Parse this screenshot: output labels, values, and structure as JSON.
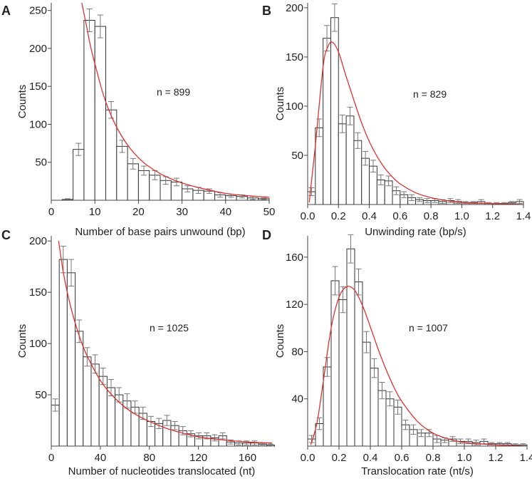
{
  "figure_title": "",
  "chart_data": [
    {
      "type": "bar",
      "panel_label": "A",
      "title": "",
      "xlabel": "Number of base pairs unwound (bp)",
      "ylabel": "Counts",
      "annotation": "n = 899",
      "xlim": [
        0,
        50
      ],
      "ylim": [
        0,
        260
      ],
      "xticks": [
        0,
        10,
        20,
        30,
        40,
        50
      ],
      "yticks": [
        50,
        100,
        150,
        200,
        250
      ],
      "bin_width": 2.5,
      "bin_starts": [
        2.5,
        5,
        7.5,
        10,
        12.5,
        15,
        17.5,
        20,
        22.5,
        25,
        27.5,
        30,
        32.5,
        35,
        37.5,
        40,
        42.5,
        45,
        47.5
      ],
      "values": [
        1,
        67,
        237,
        229,
        119,
        71,
        48,
        39,
        33,
        26,
        24,
        15,
        13,
        12,
        7,
        6,
        5,
        3,
        2
      ],
      "errors": [
        1,
        8,
        15,
        15,
        11,
        8,
        7,
        6,
        6,
        5,
        5,
        4,
        4,
        3,
        3,
        2,
        2,
        2,
        1
      ],
      "fit": {
        "color": "#e03030",
        "x": [
          7,
          8,
          9,
          10,
          12,
          14,
          16,
          18,
          20,
          22,
          25,
          28,
          31,
          35,
          40,
          45,
          50
        ],
        "y": [
          260,
          232,
          203,
          180,
          138,
          108,
          86,
          69,
          56,
          46,
          35,
          27,
          21,
          15,
          9,
          6,
          4
        ]
      }
    },
    {
      "type": "bar",
      "panel_label": "B",
      "title": "",
      "xlabel": "Unwinding rate (bp/s)",
      "ylabel": "Counts",
      "annotation": "n = 829",
      "xlim": [
        0,
        1.4
      ],
      "ylim": [
        0,
        205
      ],
      "xticks": [
        "0.0",
        "0.2",
        "0.4",
        "0.6",
        "0.8",
        "1.0",
        "1.2",
        "1.4"
      ],
      "yticks": [
        50,
        100,
        150,
        200
      ],
      "bin_width": 0.05,
      "bin_starts": [
        0.0,
        0.05,
        0.1,
        0.15,
        0.2,
        0.25,
        0.3,
        0.35,
        0.4,
        0.45,
        0.5,
        0.55,
        0.6,
        0.65,
        0.7,
        0.75,
        0.8,
        0.85,
        0.9,
        0.95,
        1.0,
        1.05,
        1.1,
        1.15,
        1.2,
        1.25,
        1.3,
        1.35
      ],
      "values": [
        13,
        78,
        169,
        190,
        82,
        90,
        65,
        47,
        39,
        25,
        24,
        14,
        10,
        7,
        5,
        4,
        4,
        3,
        4,
        3,
        2,
        2,
        3,
        1,
        1,
        1,
        2,
        3
      ],
      "errors": [
        4,
        9,
        13,
        14,
        9,
        9,
        8,
        7,
        6,
        5,
        5,
        4,
        3,
        3,
        2,
        2,
        2,
        2,
        2,
        2,
        1,
        1,
        2,
        1,
        1,
        1,
        1,
        2
      ],
      "fit": {
        "color": "#e03030",
        "x": [
          0.01,
          0.05,
          0.1,
          0.13,
          0.16,
          0.2,
          0.25,
          0.3,
          0.35,
          0.4,
          0.45,
          0.5,
          0.55,
          0.6,
          0.7,
          0.8,
          0.9,
          1.0,
          1.2,
          1.4
        ],
        "y": [
          2,
          60,
          140,
          160,
          165,
          155,
          130,
          106,
          83,
          64,
          49,
          37,
          28,
          21,
          12,
          7,
          4,
          2,
          1,
          0
        ]
      }
    },
    {
      "type": "bar",
      "panel_label": "C",
      "title": "",
      "xlabel": "Number of nucleotides translocated (nt)",
      "ylabel": "Counts",
      "annotation": "n = 1025",
      "xlim": [
        0,
        180
      ],
      "ylim": [
        0,
        205
      ],
      "xticks": [
        0,
        40,
        80,
        120,
        160
      ],
      "yticks": [
        50,
        100,
        150,
        200
      ],
      "bin_width": 6.5,
      "bin_starts": [
        0,
        6.5,
        13,
        19.5,
        26,
        32.5,
        39,
        45.5,
        52,
        58.5,
        65,
        71.5,
        78,
        84.5,
        91,
        97.5,
        104,
        110.5,
        117,
        123.5,
        130,
        136.5,
        143,
        149.5,
        156,
        162.5,
        169,
        175.5
      ],
      "values": [
        40,
        182,
        169,
        112,
        87,
        80,
        68,
        57,
        50,
        44,
        38,
        32,
        24,
        22,
        25,
        20,
        15,
        12,
        10,
        10,
        8,
        10,
        4,
        3,
        3,
        3,
        2,
        1
      ],
      "errors": [
        6,
        13,
        13,
        11,
        9,
        9,
        8,
        8,
        7,
        7,
        6,
        6,
        5,
        5,
        5,
        4,
        4,
        3,
        3,
        3,
        3,
        3,
        2,
        2,
        2,
        2,
        1,
        1
      ],
      "fit": {
        "color": "#e03030",
        "x": [
          6,
          10,
          15,
          20,
          25,
          30,
          40,
          50,
          60,
          70,
          80,
          90,
          100,
          120,
          140,
          160,
          180
        ],
        "y": [
          200,
          168,
          140,
          118,
          100,
          86,
          64,
          49,
          38,
          30,
          24,
          19,
          15,
          9,
          6,
          4,
          3
        ]
      }
    },
    {
      "type": "bar",
      "panel_label": "D",
      "title": "",
      "xlabel": "Translocation rate (nt/s)",
      "ylabel": "Counts",
      "annotation": "n = 1007",
      "xlim": [
        0,
        1.4
      ],
      "ylim": [
        0,
        178
      ],
      "xticks": [
        "0.0",
        "0.2",
        "0.4",
        "0.6",
        "0.8",
        "1.0",
        "1.2",
        "1.4"
      ],
      "yticks": [
        40,
        80,
        120,
        160
      ],
      "bin_width": 0.05,
      "bin_starts": [
        0.0,
        0.05,
        0.1,
        0.15,
        0.2,
        0.25,
        0.3,
        0.35,
        0.4,
        0.45,
        0.5,
        0.55,
        0.6,
        0.65,
        0.7,
        0.75,
        0.8,
        0.85,
        0.9,
        0.95,
        1.0,
        1.05,
        1.1,
        1.15,
        1.2,
        1.25,
        1.3,
        1.35
      ],
      "values": [
        6,
        19,
        67,
        140,
        124,
        167,
        139,
        88,
        66,
        47,
        40,
        33,
        18,
        14,
        11,
        11,
        6,
        5,
        6,
        4,
        4,
        3,
        4,
        2,
        2,
        2,
        1,
        1
      ],
      "errors": [
        3,
        5,
        8,
        12,
        11,
        12,
        11,
        9,
        8,
        7,
        6,
        6,
        4,
        4,
        3,
        3,
        3,
        2,
        2,
        2,
        2,
        2,
        2,
        1,
        1,
        1,
        1,
        1
      ],
      "fit": {
        "color": "#e03030",
        "x": [
          0.02,
          0.06,
          0.1,
          0.15,
          0.2,
          0.25,
          0.3,
          0.35,
          0.4,
          0.45,
          0.5,
          0.55,
          0.6,
          0.7,
          0.8,
          0.9,
          1.0,
          1.2,
          1.4
        ],
        "y": [
          1,
          20,
          55,
          100,
          126,
          135,
          132,
          119,
          101,
          82,
          65,
          50,
          38,
          21,
          11,
          6,
          3,
          1,
          0
        ]
      }
    }
  ]
}
